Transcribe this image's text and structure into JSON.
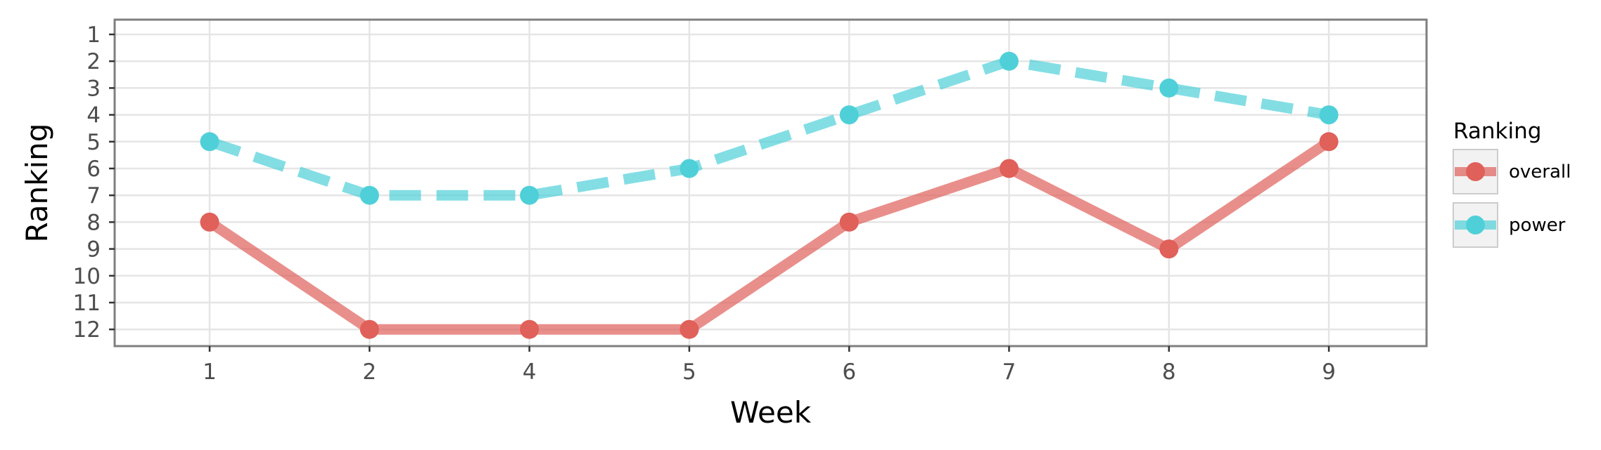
{
  "chart_data": {
    "type": "line",
    "xlabel": "Week",
    "ylabel": "Ranking",
    "categories": [
      "1",
      "2",
      "4",
      "5",
      "6",
      "7",
      "8",
      "9"
    ],
    "y_ticks": [
      "1",
      "2",
      "3",
      "4",
      "5",
      "6",
      "7",
      "8",
      "9",
      "10",
      "11",
      "12"
    ],
    "ylim": [
      12,
      1
    ],
    "y_reversed": true,
    "grid": true,
    "legend": {
      "title": "Ranking",
      "position": "right"
    },
    "series": [
      {
        "name": "overall",
        "values": [
          8,
          12,
          12,
          12,
          8,
          6,
          9,
          5
        ],
        "color": "#e0605a",
        "line_style": "solid"
      },
      {
        "name": "power",
        "values": [
          5,
          7,
          7,
          6,
          4,
          2,
          3,
          4
        ],
        "color": "#4fd0d8",
        "line_style": "dashed"
      }
    ]
  }
}
